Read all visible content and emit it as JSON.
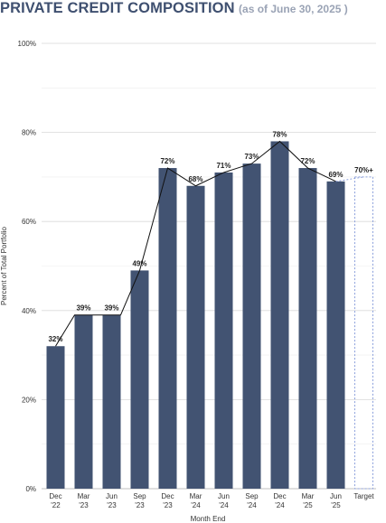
{
  "header": {
    "title": "PRIVATE CREDIT COMPOSITION",
    "subtitle": "(as of June 30, 2025 )"
  },
  "colors": {
    "bar": "#425372",
    "line": "#111111",
    "grid": "#d9d9d9",
    "target_border": "#8ca0dc",
    "title": "#3f5070",
    "subtitle": "#9aa3b5"
  },
  "chart_data": {
    "type": "bar",
    "title": "PRIVATE CREDIT COMPOSITION",
    "subtitle": "(as of June 30, 2025 )",
    "xlabel": "Month End",
    "ylabel": "Percent of Total Portfolio",
    "ylim": [
      0,
      100
    ],
    "yticks": [
      "0%",
      "20%",
      "40%",
      "60%",
      "80%",
      "100%"
    ],
    "grid": true,
    "categories": [
      [
        "Dec",
        "'22"
      ],
      [
        "Mar",
        "'23"
      ],
      [
        "Jun",
        "'23"
      ],
      [
        "Sep",
        "'23"
      ],
      [
        "Dec",
        "'23"
      ],
      [
        "Mar",
        "'24"
      ],
      [
        "Jun",
        "'24"
      ],
      [
        "Sep",
        "'24"
      ],
      [
        "Dec",
        "'24"
      ],
      [
        "Mar",
        "'25"
      ],
      [
        "Jun",
        "'25"
      ]
    ],
    "values": [
      32,
      39,
      39,
      49,
      72,
      68,
      71,
      73,
      78,
      72,
      69
    ],
    "data_labels": [
      "32%",
      "39%",
      "39%",
      "49%",
      "72%",
      "68%",
      "71%",
      "73%",
      "78%",
      "72%",
      "69%"
    ],
    "line_values": [
      32,
      39,
      39,
      49,
      72,
      68,
      71,
      73,
      78,
      72,
      69
    ],
    "target": {
      "category": "Target",
      "value": 70,
      "label": "70%+"
    }
  }
}
